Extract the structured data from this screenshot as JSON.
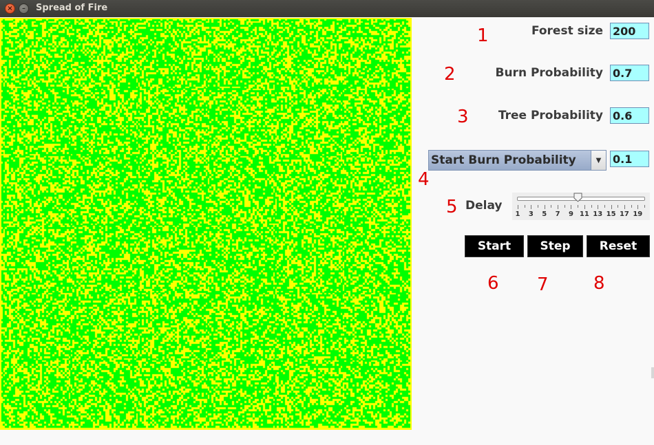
{
  "window": {
    "title": "Spread of Fire",
    "close_glyph": "×",
    "minimize_glyph": "–"
  },
  "forest": {
    "tree_color": "#00ff00",
    "empty_color": "#ffff00",
    "grid_size": 200
  },
  "controls": {
    "forest_size": {
      "label": "Forest size",
      "value": "200",
      "number": "1"
    },
    "burn_probability": {
      "label": "Burn Probability",
      "value": "0.7",
      "number": "2"
    },
    "tree_probability": {
      "label": "Tree Probability",
      "value": "0.6",
      "number": "3"
    },
    "start_burn": {
      "selected": "Start Burn Probability",
      "value": "0.1",
      "number": "4",
      "arrow_glyph": "▼"
    },
    "delay": {
      "label": "Delay",
      "number": "5",
      "min": 1,
      "max": 20,
      "value": 10,
      "tick_labels": [
        "1",
        "3",
        "5",
        "7",
        "9",
        "11",
        "13",
        "15",
        "17",
        "19"
      ]
    },
    "buttons": {
      "start": {
        "label": "Start",
        "number": "6"
      },
      "step": {
        "label": "Step",
        "number": "7"
      },
      "reset": {
        "label": "Reset",
        "number": "8"
      }
    }
  },
  "annotation_color": "#e00000"
}
